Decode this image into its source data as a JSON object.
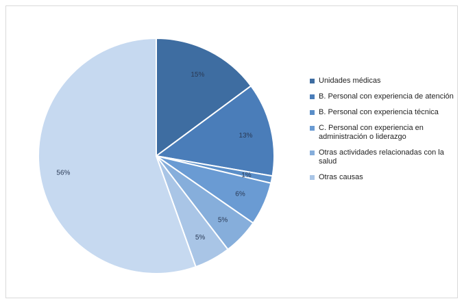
{
  "chart_data": {
    "type": "pie",
    "title": "",
    "slices": [
      {
        "name": "Unidades médicas",
        "value": 15,
        "label": "15%",
        "color": "#3e6da1"
      },
      {
        "name": "B. Personal con experiencia de atención",
        "value": 13,
        "label": "13%",
        "color": "#4a7db9"
      },
      {
        "name": "B. Personal con experiencia técnica",
        "value": 1,
        "label": "1%",
        "color": "#5a8ec8"
      },
      {
        "name": "C. Personal con experiencia en administración o liderazgo",
        "value": 6,
        "label": "6%",
        "color": "#6a9bd3"
      },
      {
        "name": "Otras actividades relacionadas con la salud",
        "value": 5,
        "label": "5%",
        "color": "#86aedb"
      },
      {
        "name": "Otras causas",
        "value": 5,
        "label": "5%",
        "color": "#a9c5e6"
      },
      {
        "name": "",
        "value": 56,
        "label": "56%",
        "color": "#c6d9f0"
      }
    ],
    "legend_position": "right"
  }
}
